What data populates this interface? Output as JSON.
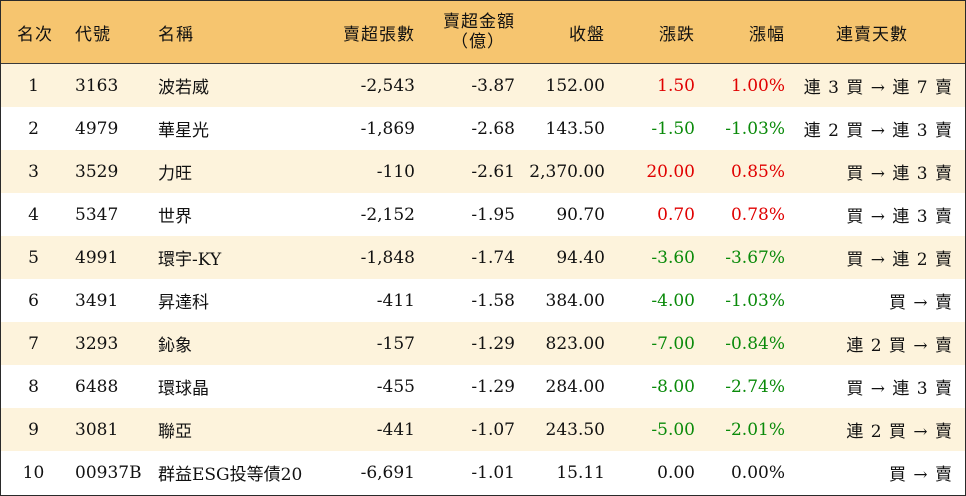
{
  "header": {
    "rank": "名次",
    "code": "代號",
    "name": "名稱",
    "qty": "賣超張數",
    "amount_line1": "賣超金額",
    "amount_line2": "（億）",
    "close": "收盤",
    "change": "漲跌",
    "pct": "漲幅",
    "streak": "連賣天數"
  },
  "colors": {
    "header_bg": "#f6c56f",
    "odd_row_bg": "#fdf3dc",
    "up": "#e00000",
    "down": "#0a8a0a"
  },
  "rows": [
    {
      "rank": "1",
      "code": "3163",
      "name": "波若威",
      "qty": "-2,543",
      "amount": "-3.87",
      "close": "152.00",
      "change": "1.50",
      "pct": "1.00%",
      "dir": "up",
      "streak": "連 3 買 → 連 7 賣"
    },
    {
      "rank": "2",
      "code": "4979",
      "name": "華星光",
      "qty": "-1,869",
      "amount": "-2.68",
      "close": "143.50",
      "change": "-1.50",
      "pct": "-1.03%",
      "dir": "down",
      "streak": "連 2 買 → 連 3 賣"
    },
    {
      "rank": "3",
      "code": "3529",
      "name": "力旺",
      "qty": "-110",
      "amount": "-2.61",
      "close": "2,370.00",
      "change": "20.00",
      "pct": "0.85%",
      "dir": "up",
      "streak": "買 → 連 3 賣"
    },
    {
      "rank": "4",
      "code": "5347",
      "name": "世界",
      "qty": "-2,152",
      "amount": "-1.95",
      "close": "90.70",
      "change": "0.70",
      "pct": "0.78%",
      "dir": "up",
      "streak": "買 → 連 3 賣"
    },
    {
      "rank": "5",
      "code": "4991",
      "name": "環宇-KY",
      "qty": "-1,848",
      "amount": "-1.74",
      "close": "94.40",
      "change": "-3.60",
      "pct": "-3.67%",
      "dir": "down",
      "streak": "買 → 連 2 賣"
    },
    {
      "rank": "6",
      "code": "3491",
      "name": "昇達科",
      "qty": "-411",
      "amount": "-1.58",
      "close": "384.00",
      "change": "-4.00",
      "pct": "-1.03%",
      "dir": "down",
      "streak": "買 → 賣"
    },
    {
      "rank": "7",
      "code": "3293",
      "name": "鈊象",
      "qty": "-157",
      "amount": "-1.29",
      "close": "823.00",
      "change": "-7.00",
      "pct": "-0.84%",
      "dir": "down",
      "streak": "連 2 買 → 賣"
    },
    {
      "rank": "8",
      "code": "6488",
      "name": "環球晶",
      "qty": "-455",
      "amount": "-1.29",
      "close": "284.00",
      "change": "-8.00",
      "pct": "-2.74%",
      "dir": "down",
      "streak": "買 → 連 3 賣"
    },
    {
      "rank": "9",
      "code": "3081",
      "name": "聯亞",
      "qty": "-441",
      "amount": "-1.07",
      "close": "243.50",
      "change": "-5.00",
      "pct": "-2.01%",
      "dir": "down",
      "streak": "連 2 買 → 賣"
    },
    {
      "rank": "10",
      "code": "00937B",
      "name": "群益ESG投等債20",
      "qty": "-6,691",
      "amount": "-1.01",
      "close": "15.11",
      "change": "0.00",
      "pct": "0.00%",
      "dir": "flat",
      "streak": "買 → 賣"
    }
  ]
}
